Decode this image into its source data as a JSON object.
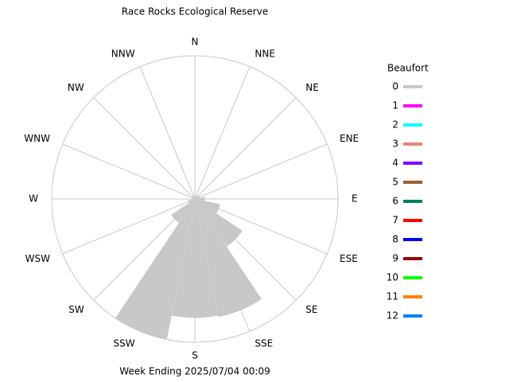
{
  "chart_data": {
    "type": "windrose",
    "title": "Race Rocks Ecological Reserve",
    "footer": "Week Ending 2025/07/04 00:09",
    "directions": [
      "N",
      "NNE",
      "NE",
      "ENE",
      "E",
      "ESE",
      "SE",
      "SSE",
      "S",
      "SSW",
      "SW",
      "WSW",
      "W",
      "WNW",
      "NW",
      "NNW"
    ],
    "values": [
      2,
      2,
      3,
      4,
      7,
      18,
      40,
      84,
      83,
      100,
      20,
      5,
      2,
      2,
      2,
      2
    ],
    "color": "#c8c8c8",
    "rlim": [
      0,
      100
    ],
    "grid": true,
    "legend": {
      "title": "Beaufort",
      "items": [
        {
          "name": "0",
          "color": "#c8c8c8"
        },
        {
          "name": "1",
          "color": "#ff00ff"
        },
        {
          "name": "2",
          "color": "#00ffff"
        },
        {
          "name": "3",
          "color": "#f08080"
        },
        {
          "name": "4",
          "color": "#8000ff"
        },
        {
          "name": "5",
          "color": "#a0602a"
        },
        {
          "name": "6",
          "color": "#008060"
        },
        {
          "name": "7",
          "color": "#ff0000"
        },
        {
          "name": "8",
          "color": "#0000ff"
        },
        {
          "name": "9",
          "color": "#a00000"
        },
        {
          "name": "10",
          "color": "#00ff00"
        },
        {
          "name": "11",
          "color": "#ff8000"
        },
        {
          "name": "12",
          "color": "#0080ff"
        }
      ]
    }
  }
}
